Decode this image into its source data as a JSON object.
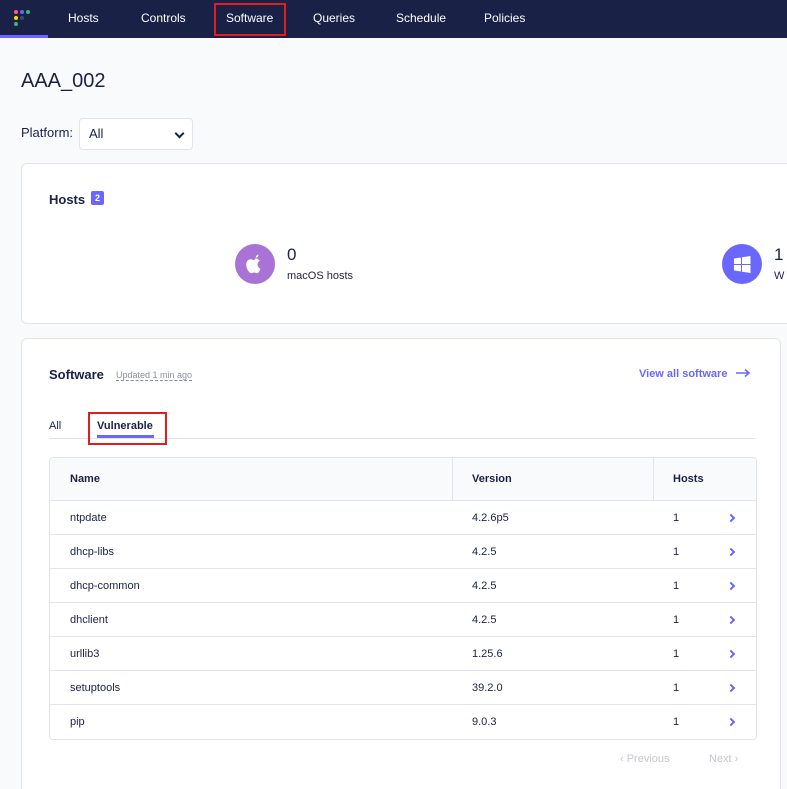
{
  "nav": {
    "logo_icon": "fleet-logo-icon",
    "items": [
      {
        "label": "Hosts"
      },
      {
        "label": "Controls"
      },
      {
        "label": "Software"
      },
      {
        "label": "Queries"
      },
      {
        "label": "Schedule"
      },
      {
        "label": "Policies"
      }
    ],
    "highlighted": "Software"
  },
  "page": {
    "title": "AAA_002",
    "platform_label": "Platform:",
    "platform_value": "All"
  },
  "hosts_card": {
    "title": "Hosts",
    "count_badge": "2",
    "platforms": [
      {
        "icon": "apple-icon",
        "count": "0",
        "label": "macOS hosts",
        "color": "#a972d5"
      },
      {
        "icon": "windows-icon",
        "count": "1",
        "label": "W",
        "color": "#6a67fe"
      }
    ]
  },
  "software_card": {
    "title": "Software",
    "updated": "Updated 1 min ago",
    "view_all": "View all software",
    "tabs": [
      {
        "label": "All"
      },
      {
        "label": "Vulnerable"
      }
    ],
    "active_tab": "Vulnerable",
    "columns": [
      "Name",
      "Version",
      "Hosts"
    ],
    "rows": [
      {
        "name": "ntpdate",
        "version": "4.2.6p5",
        "hosts": "1"
      },
      {
        "name": "dhcp-libs",
        "version": "4.2.5",
        "hosts": "1"
      },
      {
        "name": "dhcp-common",
        "version": "4.2.5",
        "hosts": "1"
      },
      {
        "name": "dhclient",
        "version": "4.2.5",
        "hosts": "1"
      },
      {
        "name": "urllib3",
        "version": "1.25.6",
        "hosts": "1"
      },
      {
        "name": "setuptools",
        "version": "39.2.0",
        "hosts": "1"
      },
      {
        "name": "pip",
        "version": "9.0.3",
        "hosts": "1"
      }
    ],
    "pagination": {
      "previous": "‹ Previous",
      "next": "Next ›"
    }
  },
  "colors": {
    "nav_bg": "#192147",
    "accent": "#6a67fe",
    "highlight_box": "#e01e1e"
  }
}
